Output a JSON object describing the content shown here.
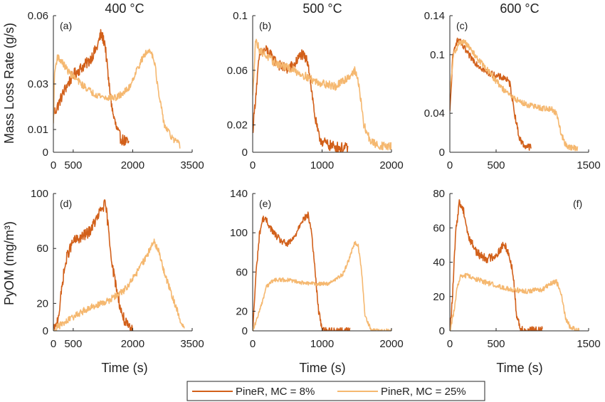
{
  "figure": {
    "column_titles": [
      "400 °C",
      "500 °C",
      "600 °C"
    ],
    "ylabels": [
      "Mass Loss Rate (g/s)",
      "PyOM (mg/m³)"
    ],
    "xlabel": "Time (s)",
    "colors": {
      "MC8": "#d2601a",
      "MC25": "#f5b870",
      "axis": "#262626"
    },
    "legend": {
      "placement": "bottom-center",
      "entries": [
        {
          "key": "MC8",
          "label": "PineR, MC = 8%"
        },
        {
          "key": "MC25",
          "label": "PineR, MC = 25%"
        }
      ]
    }
  },
  "chart_data": [
    {
      "id": "a",
      "panel_label": "(a)",
      "type": "line",
      "row": 0,
      "col": 0,
      "xlim": [
        0,
        3500
      ],
      "ylim": [
        0,
        0.06
      ],
      "xticks": [
        0,
        500,
        2000,
        3500
      ],
      "xticklabels": [
        "0",
        "500",
        "2000",
        "3500"
      ],
      "yticks": [
        0,
        0.01,
        0.03,
        0.06
      ],
      "yticklabels": [
        "0",
        "0.01",
        "0.03",
        "0.06"
      ],
      "series": [
        {
          "key": "MC8",
          "noise": 0.0025,
          "x": [
            0,
            50,
            150,
            300,
            500,
            700,
            900,
            1100,
            1200,
            1300,
            1400,
            1500,
            1600,
            1700,
            1800,
            1900
          ],
          "y": [
            0.018,
            0.018,
            0.022,
            0.028,
            0.034,
            0.037,
            0.04,
            0.046,
            0.052,
            0.048,
            0.03,
            0.017,
            0.01,
            0.006,
            0.005,
            0.004
          ]
        },
        {
          "key": "MC25",
          "noise": 0.0015,
          "x": [
            0,
            30,
            100,
            200,
            400,
            700,
            1000,
            1300,
            1600,
            1900,
            2100,
            2300,
            2450,
            2550,
            2650,
            2800,
            3000,
            3200
          ],
          "y": [
            0.012,
            0.035,
            0.042,
            0.04,
            0.035,
            0.03,
            0.026,
            0.024,
            0.024,
            0.028,
            0.036,
            0.043,
            0.045,
            0.04,
            0.026,
            0.012,
            0.006,
            0.003
          ]
        }
      ]
    },
    {
      "id": "b",
      "panel_label": "(b)",
      "type": "line",
      "row": 0,
      "col": 1,
      "xlim": [
        0,
        2000
      ],
      "ylim": [
        0,
        0.1
      ],
      "xticks": [
        0,
        1000,
        2000
      ],
      "xticklabels": [
        "0",
        "1000",
        "2000"
      ],
      "yticks": [
        0,
        0.02,
        0.06,
        0.1
      ],
      "yticklabels": [
        "0",
        "0.02",
        "0.06",
        "0.1"
      ],
      "series": [
        {
          "key": "MC8",
          "noise": 0.004,
          "x": [
            0,
            50,
            100,
            200,
            300,
            400,
            500,
            600,
            700,
            800,
            850,
            900,
            950,
            1000,
            1100,
            1200,
            1300,
            1370
          ],
          "y": [
            0.015,
            0.045,
            0.072,
            0.075,
            0.068,
            0.063,
            0.061,
            0.064,
            0.072,
            0.066,
            0.045,
            0.025,
            0.012,
            0.008,
            0.005,
            0.004,
            0.003,
            0.003
          ]
        },
        {
          "key": "MC25",
          "noise": 0.003,
          "x": [
            0,
            40,
            100,
            300,
            600,
            900,
            1200,
            1400,
            1470,
            1530,
            1600,
            1700,
            1800,
            2000
          ],
          "y": [
            0.04,
            0.082,
            0.075,
            0.066,
            0.06,
            0.052,
            0.048,
            0.056,
            0.06,
            0.05,
            0.02,
            0.008,
            0.005,
            0.004
          ]
        }
      ]
    },
    {
      "id": "c",
      "panel_label": "(c)",
      "type": "line",
      "row": 0,
      "col": 2,
      "xlim": [
        0,
        1500
      ],
      "ylim": [
        0,
        0.14
      ],
      "xticks": [
        0,
        500,
        1500
      ],
      "xticklabels": [
        "0",
        "500",
        "1500"
      ],
      "yticks": [
        0,
        0.04,
        0.1,
        0.14
      ],
      "yticklabels": [
        "0",
        "0.04",
        "0.1",
        "0.14"
      ],
      "series": [
        {
          "key": "MC8",
          "noise": 0.0035,
          "x": [
            0,
            30,
            60,
            100,
            130,
            200,
            300,
            400,
            500,
            600,
            650,
            700,
            750,
            800,
            880
          ],
          "y": [
            0.04,
            0.095,
            0.112,
            0.115,
            0.11,
            0.1,
            0.09,
            0.082,
            0.078,
            0.076,
            0.07,
            0.04,
            0.015,
            0.007,
            0.005
          ]
        },
        {
          "key": "MC25",
          "noise": 0.003,
          "x": [
            0,
            40,
            100,
            160,
            220,
            300,
            400,
            500,
            600,
            700,
            800,
            900,
            1000,
            1100,
            1150,
            1200,
            1250,
            1300,
            1380
          ],
          "y": [
            0.06,
            0.1,
            0.112,
            0.113,
            0.106,
            0.096,
            0.085,
            0.073,
            0.062,
            0.055,
            0.05,
            0.047,
            0.045,
            0.044,
            0.04,
            0.02,
            0.008,
            0.005,
            0.004
          ]
        }
      ]
    },
    {
      "id": "d",
      "panel_label": "(d)",
      "type": "line",
      "row": 1,
      "col": 0,
      "xlim": [
        0,
        3500
      ],
      "ylim": [
        0,
        100
      ],
      "xticks": [
        0,
        500,
        2000,
        3500
      ],
      "xticklabels": [
        "0",
        "500",
        "2000",
        "3500"
      ],
      "yticks": [
        0,
        20,
        60,
        100
      ],
      "yticklabels": [
        "0",
        "20",
        "60",
        "100"
      ],
      "series": [
        {
          "key": "MC8",
          "noise": 4,
          "x": [
            0,
            60,
            150,
            250,
            350,
            500,
            700,
            900,
            1100,
            1200,
            1300,
            1350,
            1400,
            1500,
            1600,
            1700,
            1800,
            1900,
            2000
          ],
          "y": [
            0,
            2,
            15,
            40,
            55,
            65,
            68,
            72,
            82,
            88,
            92,
            85,
            70,
            45,
            30,
            15,
            7,
            2,
            0
          ]
        },
        {
          "key": "MC25",
          "noise": 2.5,
          "x": [
            0,
            100,
            300,
            600,
            1000,
            1400,
            1800,
            2100,
            2300,
            2450,
            2550,
            2650,
            2800,
            3000,
            3200,
            3300
          ],
          "y": [
            0,
            3,
            6,
            12,
            18,
            22,
            30,
            42,
            52,
            60,
            65,
            58,
            42,
            25,
            8,
            2
          ]
        }
      ]
    },
    {
      "id": "e",
      "panel_label": "(e)",
      "type": "line",
      "row": 1,
      "col": 1,
      "xlim": [
        0,
        2000
      ],
      "ylim": [
        0,
        140
      ],
      "xticks": [
        0,
        1000,
        2000
      ],
      "xticklabels": [
        "0",
        "1000",
        "2000"
      ],
      "yticks": [
        0,
        20,
        60,
        100,
        140
      ],
      "yticklabels": [
        "0",
        "20",
        "60",
        "100",
        "140"
      ],
      "series": [
        {
          "key": "MC8",
          "noise": 3.5,
          "x": [
            0,
            50,
            100,
            150,
            200,
            300,
            400,
            500,
            600,
            700,
            800,
            850,
            900,
            950,
            1000,
            1050,
            1100,
            1400
          ],
          "y": [
            0,
            60,
            100,
            115,
            112,
            100,
            92,
            88,
            95,
            112,
            118,
            100,
            60,
            20,
            3,
            0,
            0,
            0
          ]
        },
        {
          "key": "MC25",
          "noise": 2,
          "x": [
            0,
            100,
            200,
            300,
            500,
            800,
            1100,
            1300,
            1400,
            1470,
            1520,
            1570,
            1620,
            1700,
            1800,
            2000
          ],
          "y": [
            0,
            20,
            45,
            52,
            52,
            48,
            48,
            58,
            75,
            90,
            88,
            60,
            15,
            2,
            0,
            0
          ]
        }
      ]
    },
    {
      "id": "f",
      "panel_label": "(f)",
      "type": "line",
      "row": 1,
      "col": 2,
      "xlim": [
        0,
        1500
      ],
      "ylim": [
        0,
        80
      ],
      "xticks": [
        0,
        500,
        1500
      ],
      "xticklabels": [
        "0",
        "500",
        "1500"
      ],
      "yticks": [
        0,
        20,
        40,
        60,
        80
      ],
      "yticklabels": [
        "0",
        "20",
        "40",
        "60",
        "80"
      ],
      "series": [
        {
          "key": "MC8",
          "noise": 2.5,
          "x": [
            0,
            30,
            60,
            100,
            150,
            200,
            300,
            400,
            500,
            580,
            620,
            680,
            720,
            760,
            800,
            1000
          ],
          "y": [
            0,
            20,
            55,
            75,
            70,
            55,
            45,
            42,
            44,
            50,
            48,
            35,
            10,
            2,
            0,
            0
          ]
        },
        {
          "key": "MC25",
          "noise": 1.5,
          "x": [
            0,
            40,
            80,
            120,
            200,
            400,
            600,
            800,
            1000,
            1100,
            1150,
            1200,
            1250,
            1300,
            1400
          ],
          "y": [
            0,
            10,
            25,
            32,
            32,
            28,
            25,
            23,
            24,
            28,
            29,
            22,
            8,
            2,
            0
          ]
        }
      ]
    }
  ]
}
